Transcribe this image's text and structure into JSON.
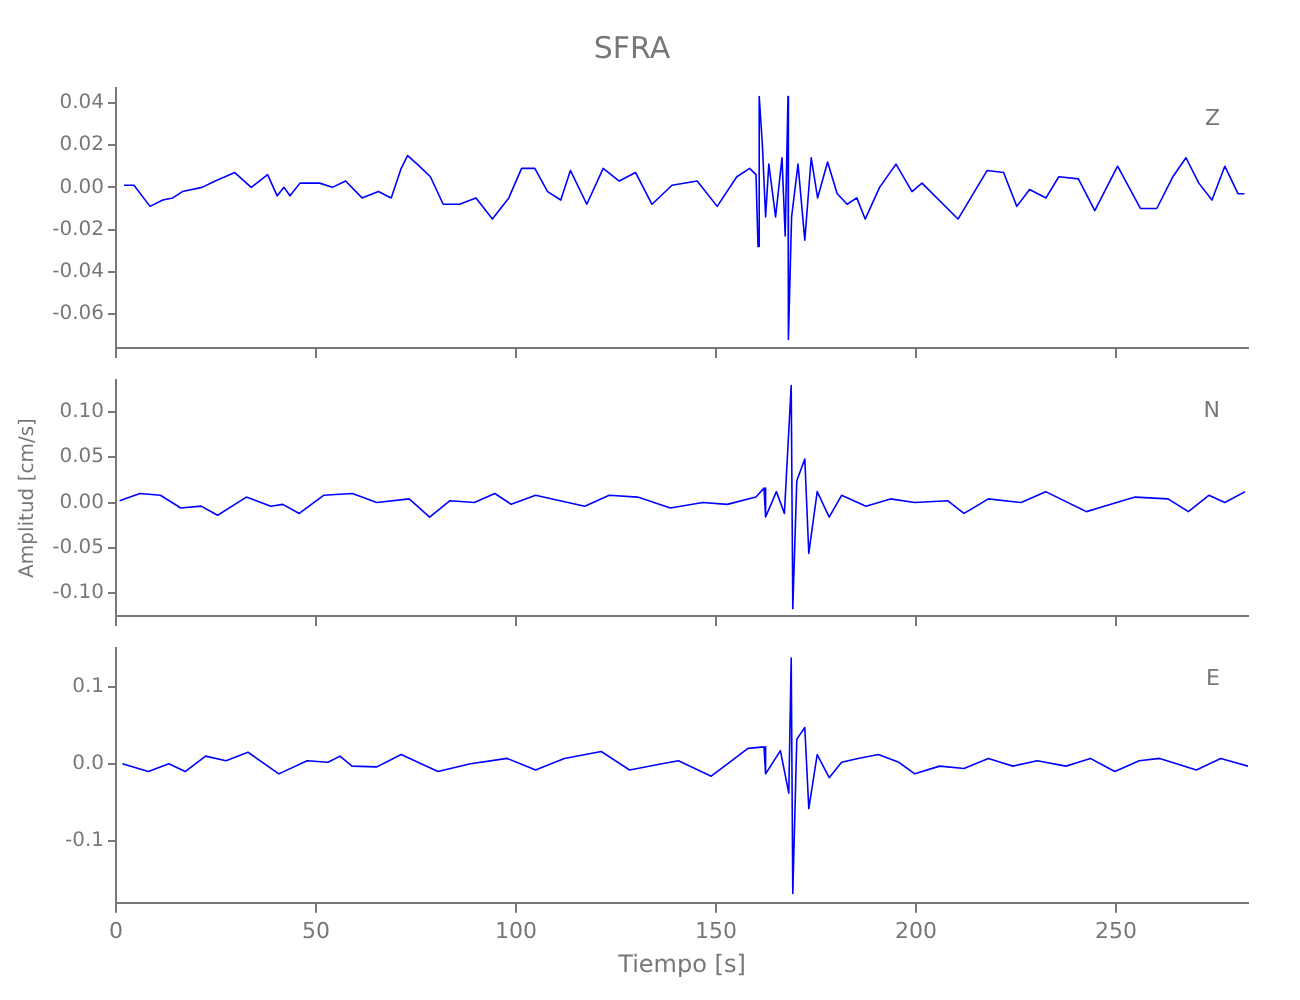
{
  "chart_data": [
    {
      "type": "line",
      "title": "SFRA",
      "marker": "none",
      "tick_labels": "y",
      "xlim": [
        0,
        283
      ],
      "xticks": [
        0,
        50,
        100,
        150,
        200,
        250
      ],
      "ylim": [
        -0.076,
        0.047
      ],
      "yticks": [
        {
          "value": -0.06,
          "label": "-0.06"
        },
        {
          "value": -0.04,
          "label": "-0.04"
        },
        {
          "value": -0.02,
          "label": "-0.02"
        },
        {
          "value": 0,
          "label": "0.00"
        },
        {
          "value": 0.02,
          "label": "0.02"
        },
        {
          "value": 0.04,
          "label": "0.04"
        }
      ],
      "x": [
        2,
        4.5,
        8.5,
        11.7,
        14.2,
        16.6,
        21.5,
        24.8,
        29.7,
        33.8,
        37.9,
        40.3,
        42,
        43.5,
        46,
        50.9,
        54.1,
        57.4,
        61.5,
        65.6,
        68.8,
        71.3,
        72.9,
        75.3,
        78.6,
        81.8,
        85.9,
        90,
        94.1,
        98.2,
        101.4,
        104.7,
        107.9,
        111.2,
        113.6,
        117.7,
        121.8,
        125.8,
        129.9,
        134,
        139,
        145.3,
        150.3,
        155.2,
        158.4,
        160,
        160.5,
        160.8,
        161.6,
        162.4,
        163.2,
        164.9,
        166.5,
        167.3,
        168,
        168.1,
        168.9,
        170.5,
        172.2,
        173.8,
        175.4,
        177.9,
        180.3,
        182.8,
        185.2,
        187.3,
        190.9,
        195,
        199,
        201.5,
        210.5,
        217.8,
        221.9,
        225.2,
        228.4,
        232.5,
        235.7,
        240.6,
        244.7,
        250.4,
        256.1,
        260.2,
        264.2,
        267.5,
        270.7,
        274,
        277.2,
        280.5,
        282.1
      ],
      "series": [
        {
          "name": "Z",
          "color": "#0000ff",
          "values": [
            0.001,
            0.001,
            -0.009,
            -0.006,
            -0.005,
            -0.002,
            0,
            0.003,
            0.007,
            0,
            0.006,
            -0.004,
            0,
            -0.004,
            0.002,
            0.002,
            0,
            0.003,
            -0.005,
            -0.002,
            -0.005,
            0.009,
            0.015,
            0.011,
            0.005,
            -0.008,
            -0.008,
            -0.005,
            -0.015,
            -0.005,
            0.009,
            0.009,
            -0.002,
            -0.006,
            0.008,
            -0.008,
            0.009,
            0.003,
            0.007,
            -0.008,
            0.001,
            0.003,
            -0.009,
            0.005,
            0.009,
            0.006,
            -0.028,
            0.043,
            0.02,
            -0.014,
            0.011,
            -0.014,
            0.014,
            -0.023,
            0.043,
            -0.072,
            -0.014,
            0.011,
            -0.025,
            0.014,
            -0.005,
            0.012,
            -0.003,
            -0.008,
            -0.005,
            -0.015,
            0,
            0.011,
            -0.002,
            0.002,
            -0.015,
            0.008,
            0.007,
            -0.009,
            -0.001,
            -0.005,
            0.005,
            0.004,
            -0.011,
            0.01,
            -0.01,
            -0.01,
            0.005,
            0.014,
            0.002,
            -0.006,
            0.01,
            -0.003,
            -0.003
          ]
        }
      ]
    },
    {
      "type": "line",
      "ylabel": "Amplitud [cm/s]",
      "marker": "none",
      "tick_labels": "y",
      "xlim": [
        0,
        283
      ],
      "xticks": [
        0,
        50,
        100,
        150,
        200,
        250
      ],
      "ylim": [
        -0.125,
        0.135
      ],
      "yticks": [
        {
          "value": -0.1,
          "label": "-0.10"
        },
        {
          "value": -0.05,
          "label": "-0.05"
        },
        {
          "value": 0,
          "label": "0.00"
        },
        {
          "value": 0.05,
          "label": "0.05"
        },
        {
          "value": 0.1,
          "label": "0.10"
        }
      ],
      "x": [
        0.9,
        6,
        11.1,
        16.2,
        21.3,
        25.4,
        32.6,
        38.7,
        41.7,
        45.8,
        51.9,
        59.1,
        65.2,
        73.3,
        78.4,
        83.5,
        89.6,
        94.7,
        98.8,
        104.9,
        111,
        117.2,
        123.3,
        130.4,
        138.6,
        146.7,
        152.8,
        160,
        162,
        162.4,
        165.1,
        167.1,
        168.8,
        169.2,
        170.2,
        172.2,
        173.2,
        175.3,
        178.3,
        181.4,
        187.5,
        193.6,
        199.7,
        207.9,
        212,
        218.1,
        226.3,
        232.4,
        242.6,
        248.7,
        254.8,
        263,
        268.1,
        273.2,
        277.2,
        282.3
      ],
      "series": [
        {
          "name": "N",
          "color": "#0000ff",
          "values": [
            0.002,
            0.01,
            0.008,
            -0.006,
            -0.004,
            -0.014,
            0.006,
            -0.004,
            -0.002,
            -0.012,
            0.008,
            0.01,
            0,
            0.004,
            -0.016,
            0.002,
            0,
            0.01,
            -0.002,
            0.008,
            0.002,
            -0.004,
            0.008,
            0.006,
            -0.006,
            0,
            -0.002,
            0.006,
            0.016,
            -0.016,
            0.012,
            -0.012,
            0.129,
            -0.117,
            0.024,
            0.048,
            -0.056,
            0.012,
            -0.016,
            0.008,
            -0.004,
            0.004,
            0,
            0.002,
            -0.012,
            0.004,
            0,
            0.012,
            -0.01,
            -0.002,
            0.006,
            0.004,
            -0.01,
            0.008,
            0,
            0.012
          ]
        }
      ]
    },
    {
      "type": "line",
      "xlabel": "Tiempo [s]",
      "marker": "none",
      "xlim": [
        0,
        283
      ],
      "xticks": [
        0,
        50,
        100,
        150,
        200,
        250
      ],
      "ylim": [
        -0.18,
        0.15
      ],
      "yticks": [
        {
          "value": -0.1,
          "label": "-0.1"
        },
        {
          "value": 0,
          "label": "0.0"
        },
        {
          "value": 0.1,
          "label": "0.1"
        }
      ],
      "x": [
        1.6,
        8.1,
        13.2,
        17.3,
        22.4,
        27.5,
        33,
        40.7,
        47.8,
        53,
        56,
        59,
        65.2,
        71.3,
        80.5,
        88.6,
        97.8,
        104.9,
        112.1,
        121.3,
        128.4,
        136.5,
        140.6,
        148.8,
        158,
        162,
        162.4,
        166.1,
        168.2,
        168.8,
        169.2,
        170.2,
        172.2,
        173.2,
        175.3,
        178.3,
        181.4,
        185.5,
        190.6,
        195.7,
        199.7,
        205.9,
        212,
        218.1,
        224.2,
        230.3,
        237.5,
        243.6,
        249.7,
        255.8,
        260.9,
        270.1,
        276.2,
        283
      ],
      "series": [
        {
          "name": "E",
          "color": "#0000ff",
          "values": [
            0,
            -0.01,
            0,
            -0.01,
            0.01,
            0.004,
            0.015,
            -0.013,
            0.004,
            0.002,
            0.01,
            -0.003,
            -0.004,
            0.012,
            -0.01,
            0,
            0.007,
            -0.008,
            0.007,
            0.016,
            -0.008,
            0,
            0.004,
            -0.016,
            0.02,
            0.022,
            -0.013,
            0.017,
            -0.038,
            0.137,
            -0.168,
            0.032,
            0.047,
            -0.058,
            0.012,
            -0.018,
            0.002,
            0.007,
            0.012,
            0.002,
            -0.013,
            -0.003,
            -0.006,
            0.007,
            -0.003,
            0.004,
            -0.003,
            0.007,
            -0.01,
            0.004,
            0.007,
            -0.008,
            0.007,
            -0.003
          ]
        }
      ]
    }
  ]
}
